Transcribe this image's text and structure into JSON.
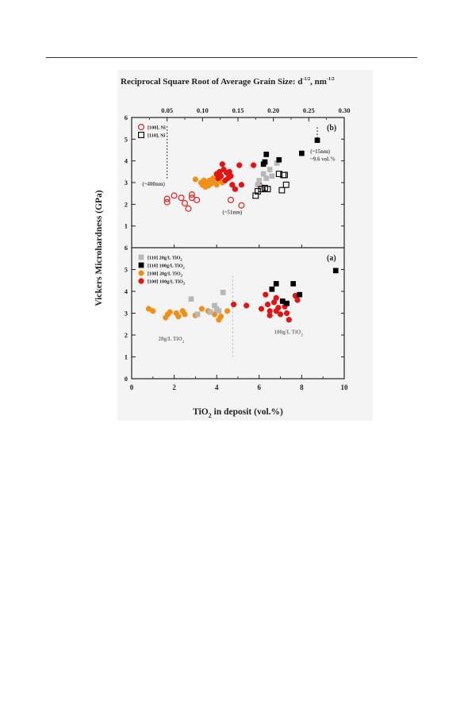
{
  "page": {
    "background": "#ffffff"
  },
  "chart_data": {
    "type": "scatter",
    "top_axis": {
      "label": "Reciprocal Square Root of Average Grain Size:",
      "label_expr_base": "d",
      "label_expr_exp": "-1/2",
      "label_unit_sep": ", nm",
      "label_unit_exp": "-1/2",
      "ticks": [
        "0.05",
        "0.10",
        "0.15",
        "0.20",
        "0.25",
        "0.30"
      ],
      "tick_values": [
        0.05,
        0.1,
        0.15,
        0.2,
        0.25,
        0.3
      ],
      "range": [
        0.0,
        0.3
      ]
    },
    "x_axis": {
      "label_main": "TiO",
      "label_sub": "2",
      "label_rest": " in deposit (vol.%)",
      "range": [
        0,
        10
      ],
      "ticks": [
        "0",
        "2",
        "4",
        "6",
        "8",
        "10"
      ],
      "tick_values": [
        0,
        2,
        4,
        6,
        8,
        10
      ]
    },
    "y_axis": {
      "label": "Vickers Microhardness (GPa)",
      "range": [
        0,
        6
      ],
      "ticks": [
        "0",
        "1",
        "2",
        "3",
        "4",
        "5",
        "6"
      ],
      "tick_values": [
        0,
        1,
        2,
        3,
        4,
        5,
        6
      ]
    },
    "panels": [
      {
        "id": "b",
        "label": "(b)",
        "legend": [
          {
            "text": "[100], Ni",
            "marker": "circle-open",
            "color": "#e02020"
          },
          {
            "text": "[110], Ni",
            "marker": "square-open",
            "color": "#000000"
          }
        ],
        "series": [
          {
            "name": "[100], Ni",
            "marker": "circle-open",
            "color": "#e02020",
            "points": [
              [
                0.05,
                2.25
              ],
              [
                0.05,
                2.1
              ],
              [
                0.06,
                2.4
              ],
              [
                0.07,
                2.3
              ],
              [
                0.075,
                2.05
              ],
              [
                0.08,
                1.8
              ],
              [
                0.085,
                2.45
              ],
              [
                0.085,
                2.3
              ],
              [
                0.092,
                2.2
              ],
              [
                0.14,
                2.2
              ],
              [
                0.155,
                1.95
              ]
            ]
          },
          {
            "name": "[100] 20g/L",
            "marker": "circle-filled",
            "color": "#f0901a",
            "points": [
              [
                0.09,
                3.15
              ],
              [
                0.098,
                3.0
              ],
              [
                0.1,
                2.9
              ],
              [
                0.102,
                3.1
              ],
              [
                0.104,
                2.8
              ],
              [
                0.106,
                3.0
              ],
              [
                0.108,
                2.85
              ],
              [
                0.11,
                3.1
              ],
              [
                0.112,
                2.95
              ],
              [
                0.115,
                3.2
              ],
              [
                0.118,
                3.0
              ],
              [
                0.12,
                2.9
              ],
              [
                0.124,
                3.1
              ],
              [
                0.128,
                3.0
              ]
            ]
          },
          {
            "name": "[100] 100g/L",
            "marker": "circle-filled",
            "color": "#e01515",
            "points": [
              [
                0.12,
                3.4
              ],
              [
                0.122,
                3.2
              ],
              [
                0.124,
                3.5
              ],
              [
                0.126,
                3.3
              ],
              [
                0.128,
                3.85
              ],
              [
                0.13,
                3.6
              ],
              [
                0.132,
                3.1
              ],
              [
                0.134,
                3.45
              ],
              [
                0.136,
                3.2
              ],
              [
                0.138,
                3.5
              ],
              [
                0.14,
                3.3
              ],
              [
                0.142,
                2.9
              ],
              [
                0.146,
                2.7
              ],
              [
                0.152,
                3.8
              ],
              [
                0.155,
                2.9
              ],
              [
                0.172,
                3.8
              ],
              [
                0.18,
                2.9
              ]
            ]
          },
          {
            "name": "[110] 20g/L",
            "marker": "square-filled",
            "color": "#b8b8b8",
            "points": [
              [
                0.178,
                2.9
              ],
              [
                0.18,
                3.1
              ],
              [
                0.182,
                2.8
              ],
              [
                0.186,
                3.4
              ],
              [
                0.19,
                3.2
              ],
              [
                0.195,
                3.6
              ],
              [
                0.198,
                3.3
              ],
              [
                0.205,
                3.9
              ]
            ]
          },
          {
            "name": "[110], Ni",
            "marker": "square-open",
            "color": "#000000",
            "points": [
              [
                0.175,
                2.4
              ],
              [
                0.178,
                2.6
              ],
              [
                0.183,
                2.7
              ],
              [
                0.188,
                2.75
              ],
              [
                0.192,
                2.7
              ],
              [
                0.208,
                3.4
              ],
              [
                0.212,
                2.65
              ],
              [
                0.214,
                3.35
              ],
              [
                0.216,
                3.35
              ],
              [
                0.218,
                2.9
              ]
            ]
          },
          {
            "name": "[110] 100g/L",
            "marker": "square-filled",
            "color": "#000000",
            "points": [
              [
                0.186,
                3.85
              ],
              [
                0.188,
                3.95
              ],
              [
                0.19,
                4.3
              ],
              [
                0.208,
                4.05
              ],
              [
                0.24,
                4.35
              ],
              [
                0.262,
                4.95
              ]
            ]
          }
        ],
        "annotations": [
          {
            "text": "(~400nm)",
            "x": 0.015,
            "y": 2.85
          },
          {
            "text": "(~51nm)",
            "x": 0.128,
            "y": 1.55
          },
          {
            "text": "(~15nm)",
            "x": 0.252,
            "y": 4.35
          },
          {
            "text": "~9.6 vol.%",
            "x": 0.252,
            "y": 4.0
          }
        ],
        "dotted_lines": [
          {
            "x": 0.05,
            "y_from": 3.2,
            "y_to": 5.65
          },
          {
            "x": 0.262,
            "y_from": 5.05,
            "y_to": 5.6
          }
        ]
      },
      {
        "id": "a",
        "label": "(a)",
        "legend": [
          {
            "text": "[110] 20g/L TiO",
            "sub": "2",
            "marker": "square-filled",
            "color": "#b8b8b8"
          },
          {
            "text": "[110] 100g/L TiO",
            "sub": "2",
            "marker": "square-filled",
            "color": "#000000"
          },
          {
            "text": "[100] 20g/L TiO",
            "sub": "2",
            "marker": "circle-filled",
            "color": "#f0901a"
          },
          {
            "text": "[100] 100g/L TiO",
            "sub": "2",
            "marker": "circle-filled",
            "color": "#e01515"
          }
        ],
        "series": [
          {
            "name": "[100] 20g/L TiO2",
            "marker": "circle-filled",
            "color": "#f0901a",
            "points": [
              [
                0.8,
                3.2
              ],
              [
                1.0,
                3.1
              ],
              [
                1.6,
                2.8
              ],
              [
                1.7,
                2.95
              ],
              [
                1.8,
                3.05
              ],
              [
                2.1,
                3.0
              ],
              [
                2.2,
                2.85
              ],
              [
                2.4,
                3.1
              ],
              [
                2.5,
                2.95
              ],
              [
                3.0,
                2.9
              ],
              [
                3.3,
                3.2
              ],
              [
                3.6,
                3.1
              ],
              [
                3.9,
                2.95
              ],
              [
                4.1,
                2.7
              ],
              [
                4.2,
                2.85
              ],
              [
                4.5,
                3.1
              ]
            ]
          },
          {
            "name": "[110] 20g/L TiO2",
            "marker": "square-filled",
            "color": "#b8b8b8",
            "points": [
              [
                2.8,
                3.65
              ],
              [
                3.1,
                2.95
              ],
              [
                3.7,
                3.05
              ],
              [
                3.9,
                3.35
              ],
              [
                4.0,
                3.2
              ],
              [
                4.1,
                3.1
              ],
              [
                4.3,
                3.95
              ]
            ]
          },
          {
            "name": "[100] 100g/L TiO2",
            "marker": "circle-filled",
            "color": "#e01515",
            "points": [
              [
                4.8,
                3.4
              ],
              [
                5.4,
                3.35
              ],
              [
                6.1,
                3.2
              ],
              [
                6.3,
                3.85
              ],
              [
                6.4,
                3.4
              ],
              [
                6.5,
                3.1
              ],
              [
                6.5,
                2.9
              ],
              [
                6.7,
                3.5
              ],
              [
                6.8,
                3.7
              ],
              [
                6.8,
                3.1
              ],
              [
                6.9,
                3.25
              ],
              [
                7.0,
                2.95
              ],
              [
                7.1,
                3.55
              ],
              [
                7.2,
                3.3
              ],
              [
                7.3,
                3.0
              ],
              [
                7.4,
                2.7
              ],
              [
                7.7,
                3.8
              ],
              [
                7.8,
                3.6
              ]
            ]
          },
          {
            "name": "[110] 100g/L TiO2",
            "marker": "square-filled",
            "color": "#000000",
            "points": [
              [
                6.6,
                4.1
              ],
              [
                6.8,
                4.35
              ],
              [
                7.1,
                3.55
              ],
              [
                7.3,
                3.45
              ],
              [
                7.6,
                4.35
              ],
              [
                7.9,
                3.85
              ],
              [
                9.6,
                4.95
              ]
            ]
          }
        ],
        "annotations": [
          {
            "text": "20g/L TiO",
            "sub": "2",
            "x": 1.25,
            "y": 1.75
          },
          {
            "text": "100g/L TiO",
            "sub": "2",
            "x": 6.7,
            "y": 2.05
          }
        ],
        "dotted_lines": [
          {
            "x": 4.75,
            "y_from": 1.0,
            "y_to": 4.75
          }
        ]
      }
    ],
    "grid": false
  }
}
